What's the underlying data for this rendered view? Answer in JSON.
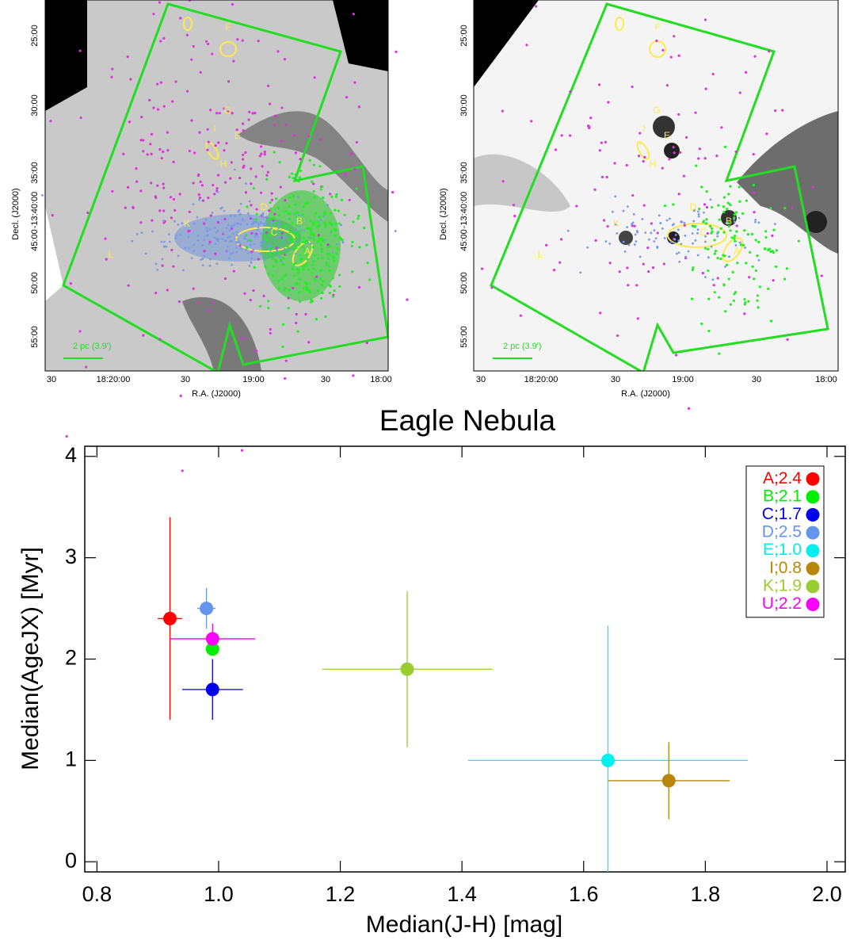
{
  "images": [
    {
      "xlabel": "R.A. (J2000)",
      "ylabel": "Decl. (J2000)",
      "xticks": [
        "30",
        "18:20:00",
        "30",
        "19:00",
        "30",
        "18:00"
      ],
      "yticks": [
        "25:00",
        "30:00",
        "35:00",
        "-13:40:00",
        "45:00",
        "50:00",
        "55:00"
      ],
      "scale_label": "2 pc (3.9')",
      "regions": [
        "F",
        "G",
        "I",
        "E",
        "H",
        "D",
        "B",
        "C",
        "A",
        "K",
        "L"
      ]
    },
    {
      "xlabel": "R.A. (J2000)",
      "ylabel": "Decl. (J2000)",
      "xticks": [
        "30",
        "18:20:00",
        "30",
        "19:00",
        "30",
        "18:00"
      ],
      "yticks": [
        "25:00",
        "30:00",
        "35:00",
        "-13:40:00",
        "45:00",
        "50:00",
        "55:00"
      ],
      "scale_label": "2 pc (3.9')",
      "regions": [
        "F",
        "G",
        "I",
        "E",
        "H",
        "D",
        "B",
        "C",
        "A",
        "K",
        "L"
      ]
    }
  ],
  "chart_data": {
    "type": "scatter",
    "title": "Eagle Nebula",
    "xlabel": "Median(J-H) [mag]",
    "ylabel": "Median(AgeJX) [Myr]",
    "xlim": [
      0.78,
      2.03
    ],
    "ylim": [
      -0.1,
      4.1
    ],
    "xticks": [
      0.8,
      {
        "value": 1,
        "label": "1.0"
      },
      1.2,
      1.4,
      1.6,
      1.8,
      {
        "value": 2,
        "label": "2.0"
      }
    ],
    "yticks": [
      0,
      1,
      2,
      3,
      4
    ],
    "legend": "upper right",
    "series": [
      {
        "name": "A;2.4",
        "color": "#ff0000",
        "x": [
          0.92
        ],
        "values": [
          2.4
        ],
        "xerr": [
          0.02
        ],
        "yerr": [
          1.0
        ]
      },
      {
        "name": "B;2.1",
        "color": "#00ee00",
        "x": [
          0.99
        ],
        "values": [
          2.1
        ],
        "xerr": [
          0.01
        ],
        "yerr": [
          0.05
        ]
      },
      {
        "name": "C;1.7",
        "color": "#0000ee",
        "x": [
          0.99
        ],
        "values": [
          1.7
        ],
        "xerr": [
          0.05
        ],
        "yerr": [
          0.3
        ]
      },
      {
        "name": "D;2.5",
        "color": "#6495ed",
        "x": [
          0.98
        ],
        "values": [
          2.5
        ],
        "xerr": [
          0.015
        ],
        "yerr": [
          0.2
        ]
      },
      {
        "name": "E;1.0",
        "color": "#00f0f0",
        "x": [
          1.64
        ],
        "values": [
          1.0
        ],
        "xerr": [
          0.23
        ],
        "yerr": [
          1.33
        ]
      },
      {
        "name": "I;0.8",
        "color": "#b8860b",
        "x": [
          1.74
        ],
        "values": [
          0.8
        ],
        "xerr": [
          0.1
        ],
        "yerr": [
          0.38
        ]
      },
      {
        "name": "K;1.9",
        "color": "#9acd32",
        "x": [
          1.31
        ],
        "values": [
          1.9
        ],
        "xerr": [
          0.14
        ],
        "yerr": [
          0.77
        ]
      },
      {
        "name": "U;2.2",
        "color": "#ff00ff",
        "x": [
          0.99
        ],
        "values": [
          2.2
        ],
        "xerr": [
          0.07
        ],
        "yerr": [
          0.15
        ]
      }
    ]
  }
}
